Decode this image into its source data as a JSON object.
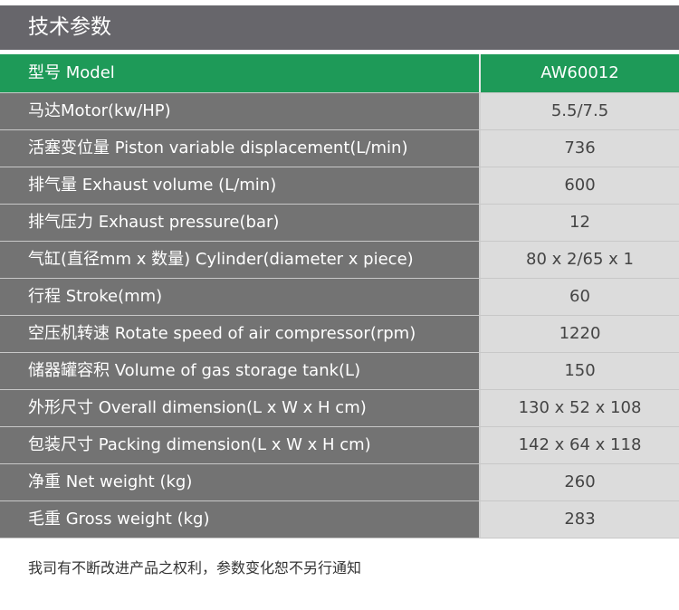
{
  "title": "技术参数",
  "header": {
    "label": "型号 Model",
    "value": "AW60012"
  },
  "rows": [
    {
      "label": "马达Motor(kw/HP)",
      "value": "5.5/7.5"
    },
    {
      "label": "活塞变位量 Piston variable displacement(L/min)",
      "value": "736"
    },
    {
      "label": "排气量 Exhaust volume (L/min)",
      "value": "600"
    },
    {
      "label": "排气压力 Exhaust pressure(bar)",
      "value": "12"
    },
    {
      "label": "气缸(直径mm x 数量) Cylinder(diameter x piece)",
      "value": "80 x 2/65 x 1"
    },
    {
      "label": "行程 Stroke(mm)",
      "value": "60"
    },
    {
      "label": "空压机转速 Rotate speed of air compressor(rpm)",
      "value": "1220"
    },
    {
      "label": "储器罐容积 Volume of gas storage tank(L)",
      "value": "150"
    },
    {
      "label": "外形尺寸 Overall dimension(L x W x H cm)",
      "value": "130 x 52 x 108"
    },
    {
      "label": "包装尺寸 Packing dimension(L x W x H cm)",
      "value": "142 x 64 x 118"
    },
    {
      "label": "净重 Net weight (kg)",
      "value": "260"
    },
    {
      "label": "毛重 Gross weight (kg)",
      "value": "283"
    }
  ],
  "note": "我司有不断改进产品之权利，参数变化恕不另行通知",
  "colors": {
    "title_bg": "#67666b",
    "header_bg": "#1e9a58",
    "label_bg": "#737373",
    "value_bg": "#dcdcdc"
  }
}
